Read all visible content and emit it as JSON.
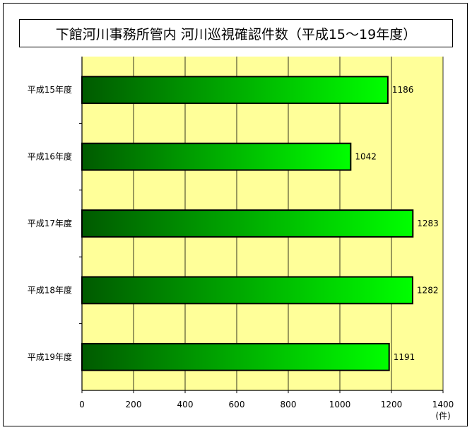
{
  "chart_data": {
    "type": "bar",
    "orientation": "horizontal",
    "title": "下館河川事務所管内 河川巡視確認件数（平成15～19年度）",
    "categories": [
      "平成15年度",
      "平成16年度",
      "平成17年度",
      "平成18年度",
      "平成19年度"
    ],
    "values": [
      1186,
      1042,
      1283,
      1282,
      1191
    ],
    "data_labels": [
      "1186",
      "1042",
      "1283",
      "1282",
      "1191"
    ],
    "xlim": [
      0,
      1400
    ],
    "x_ticks": [
      0,
      200,
      400,
      600,
      800,
      1000,
      1200,
      1400
    ],
    "x_tick_labels": [
      "0",
      "200",
      "400",
      "600",
      "800",
      "1000",
      "1200",
      "1400"
    ],
    "x_unit": "(件)",
    "grid": "vertical",
    "plot_background": "#ffff99",
    "bar_gradient": [
      "#005a00",
      "#00ff00"
    ]
  }
}
